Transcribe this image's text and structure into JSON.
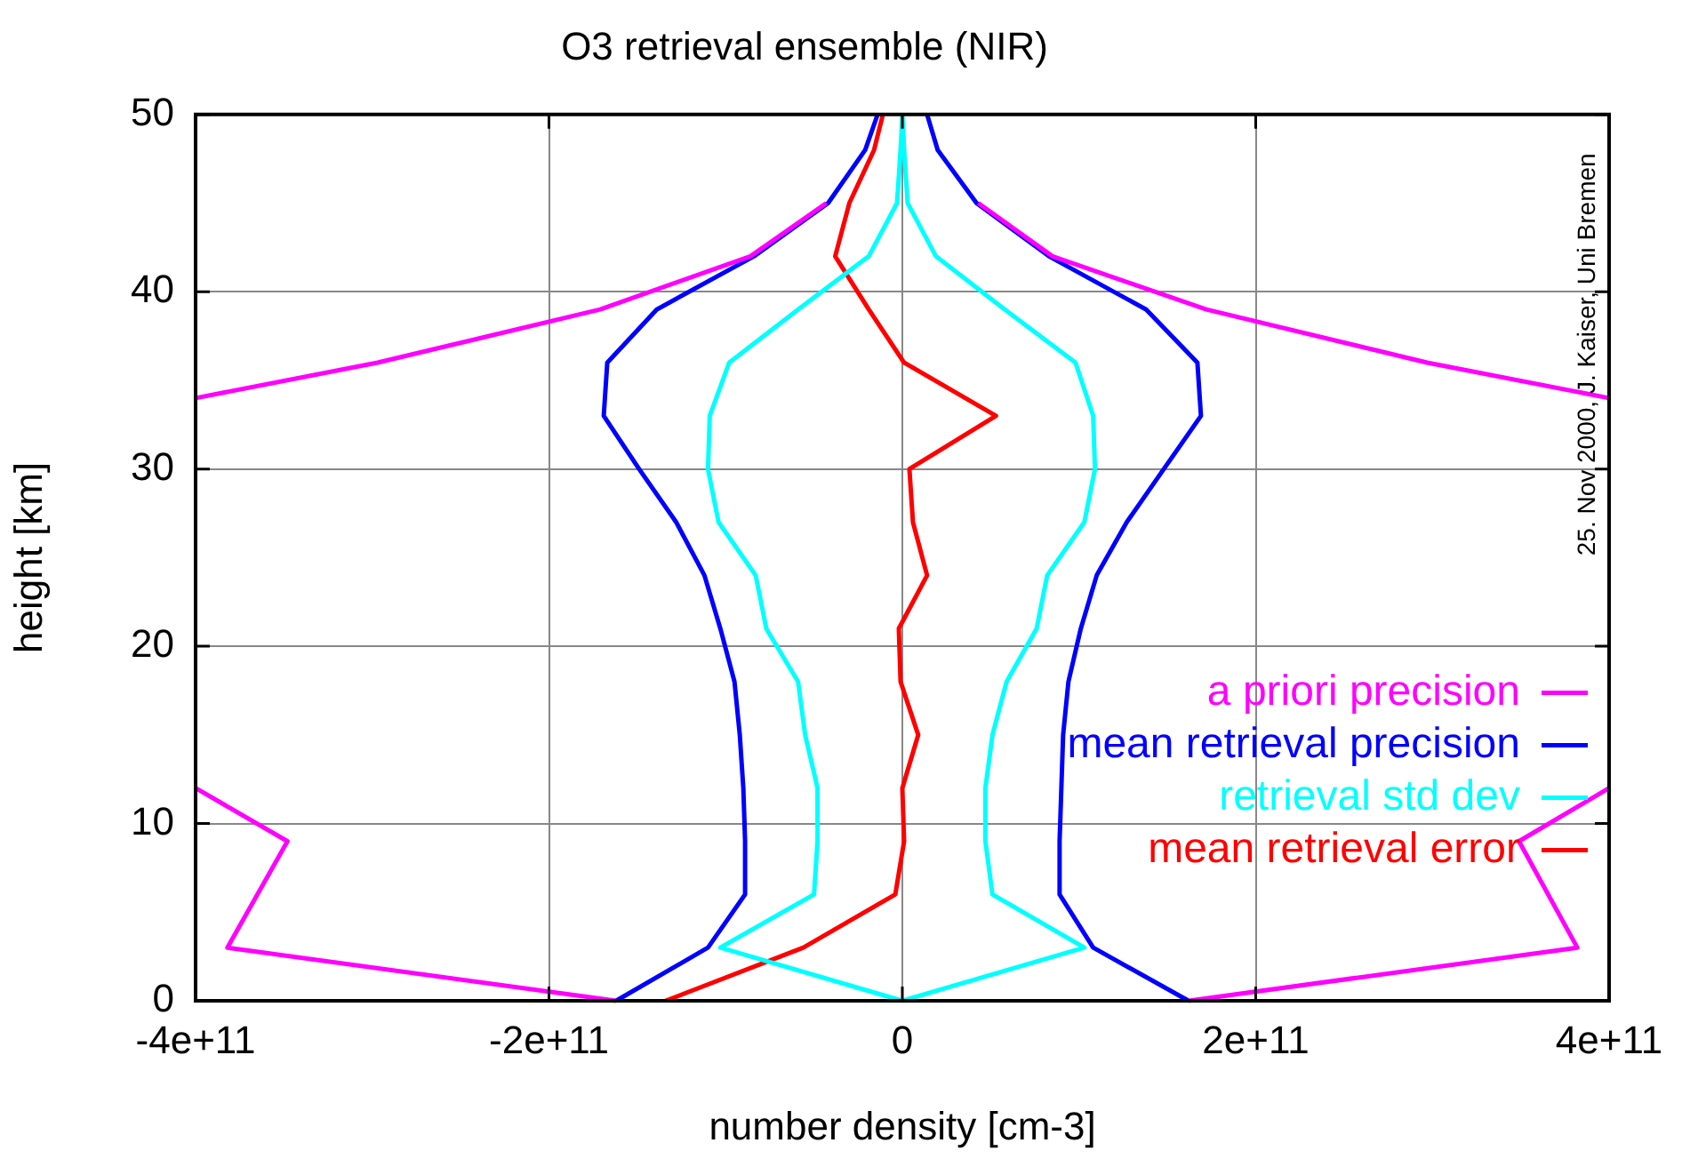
{
  "chart_data": {
    "type": "line",
    "title": "O3 retrieval ensemble (NIR)",
    "xlabel": "number density [cm-3]",
    "ylabel": "height [km]",
    "xlim": [
      -400000000000.0,
      400000000000.0
    ],
    "xticks": [
      {
        "value": -400000000000.0,
        "label": "-4e+11"
      },
      {
        "value": -200000000000.0,
        "label": "-2e+11"
      },
      0,
      {
        "value": 200000000000.0,
        "label": "2e+11"
      },
      {
        "value": 400000000000.0,
        "label": "4e+11"
      }
    ],
    "ylim": [
      0,
      50
    ],
    "yticks": [
      0,
      10,
      20,
      30,
      40,
      50
    ],
    "grid": true,
    "legend": "bottom right",
    "annotations": [
      "25. Nov 2000, J. Kaiser, Uni Bremen"
    ],
    "series": [
      {
        "name": "a priori precision",
        "color": "#ff00ff",
        "x": [
          -162000000000.0,
          -382000000000.0,
          -348000000000.0,
          -400000000000.0,
          null,
          -400000000000.0,
          -297000000000.0,
          -171000000000.0,
          -86000000000.0,
          -43000000000.0,
          null,
          43000000000.0,
          85000000000.0,
          172000000000.0,
          297000000000.0,
          400000000000.0,
          null,
          400000000000.0,
          349000000000.0,
          382000000000.0,
          162000000000.0
        ],
        "values": [
          0,
          3,
          9,
          12,
          null,
          34,
          36,
          39,
          42,
          45,
          null,
          45,
          42,
          39,
          36,
          34,
          null,
          12,
          9,
          3,
          0
        ]
      },
      {
        "name": "mean retrieval precision",
        "color": "#0000ff",
        "x": [
          -162000000000.0,
          -110000000000.0,
          -89000000000.0,
          -89000000000.0,
          -90000000000.0,
          -92000000000.0,
          -95000000000.0,
          -103000000000.0,
          -112000000000.0,
          -128000000000.0,
          -149000000000.0,
          -169000000000.0,
          -167000000000.0,
          -139000000000.0,
          -84000000000.0,
          -42000000000.0,
          -21000000000.0,
          -14000000000.0,
          null,
          14000000000.0,
          20000000000.0,
          42000000000.0,
          83000000000.0,
          138000000000.0,
          167000000000.0,
          169000000000.0,
          148000000000.0,
          127000000000.0,
          110000000000.0,
          101000000000.0,
          94000000000.0,
          91000000000.0,
          90000000000.0,
          89000000000.0,
          89000000000.0,
          108000000000.0,
          162000000000.0
        ],
        "values": [
          0,
          3,
          6,
          9,
          12,
          15,
          18,
          21,
          24,
          27,
          30,
          33,
          36,
          39,
          42,
          45,
          48,
          50,
          null,
          50,
          48,
          45,
          42,
          39,
          36,
          33,
          30,
          27,
          24,
          21,
          18,
          15,
          12,
          9,
          6,
          3,
          0
        ]
      },
      {
        "name": "retrieval std dev",
        "color": "#00ffff",
        "x": [
          0,
          -103000000000.0,
          -50000000000.0,
          -48000000000.0,
          -48000000000.0,
          -55000000000.0,
          -59000000000.0,
          -77000000000.0,
          -83000000000.0,
          -104000000000.0,
          -110000000000.0,
          -109000000000.0,
          -98000000000.0,
          -59000000000.0,
          -19000000000.0,
          -3000000000.0,
          -1000000000.0,
          0,
          null,
          0,
          1000000000.0,
          3000000000.0,
          19000000000.0,
          58000000000.0,
          98000000000.0,
          108000000000.0,
          109000000000.0,
          103000000000.0,
          82000000000.0,
          76000000000.0,
          59000000000.0,
          51000000000.0,
          47000000000.0,
          47000000000.0,
          51000000000.0,
          103000000000.0,
          0
        ],
        "values": [
          0,
          3,
          6,
          9,
          12,
          15,
          18,
          21,
          24,
          27,
          30,
          33,
          36,
          39,
          42,
          45,
          48,
          50,
          null,
          50,
          48,
          45,
          42,
          39,
          36,
          33,
          30,
          27,
          24,
          21,
          18,
          15,
          12,
          9,
          6,
          3,
          0
        ]
      },
      {
        "name": "mean retrieval error",
        "color": "#ff0000",
        "x": [
          -134000000000.0,
          -56000000000.0,
          -4000000000.0,
          1000000000.0,
          0,
          9000000000.0,
          -1000000000.0,
          -2000000000.0,
          14000000000.0,
          6000000000.0,
          4000000000.0,
          53000000000.0,
          1000000000.0,
          -19000000000.0,
          -38000000000.0,
          -30000000000.0,
          -16000000000.0,
          -11000000000.0
        ],
        "values": [
          0,
          3,
          6,
          9,
          12,
          15,
          18,
          21,
          24,
          27,
          30,
          33,
          36,
          39,
          42,
          45,
          48,
          50
        ]
      }
    ]
  }
}
